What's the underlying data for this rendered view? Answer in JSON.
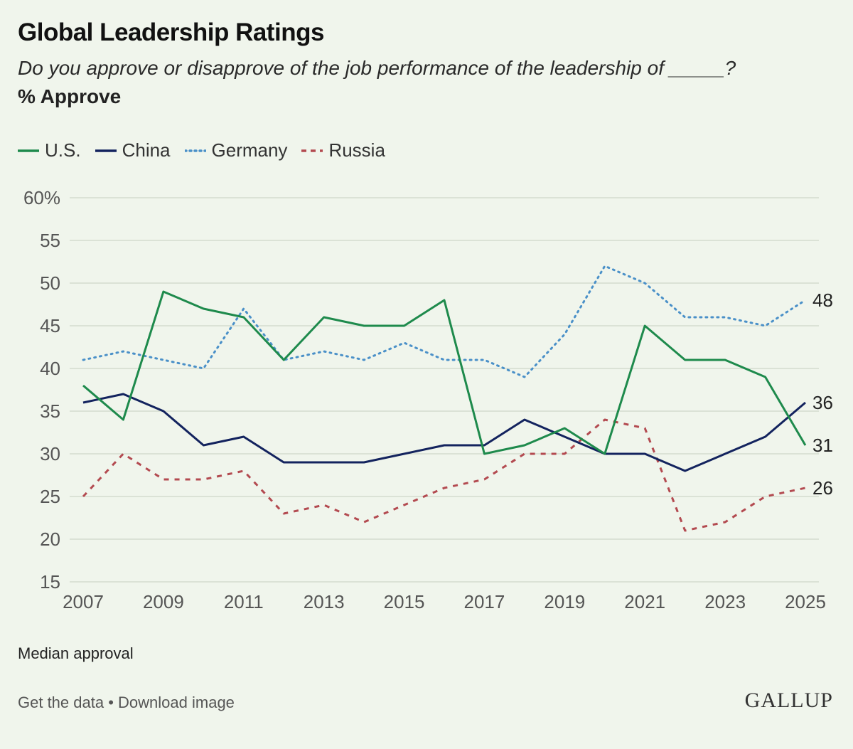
{
  "header": {
    "title": "Global Leadership Ratings",
    "subtitle": "Do you approve or disapprove of the job performance of the leadership of _____?",
    "measure": "% Approve"
  },
  "footer": {
    "note": "Median approval",
    "get_data": "Get the data",
    "separator": "•",
    "download": "Download image",
    "brand": "GALLUP"
  },
  "chart_data": {
    "type": "line",
    "title": "Global Leadership Ratings",
    "ylabel": "% Approve",
    "xlabel": "",
    "ylim": [
      15,
      60
    ],
    "xlim": [
      2007,
      2025
    ],
    "y_ticks": [
      "60%",
      "55",
      "50",
      "45",
      "40",
      "35",
      "30",
      "25",
      "20",
      "15"
    ],
    "y_tick_values": [
      60,
      55,
      50,
      45,
      40,
      35,
      30,
      25,
      20,
      15
    ],
    "x_ticks": [
      "2007",
      "2009",
      "2011",
      "2013",
      "2015",
      "2017",
      "2019",
      "2021",
      "2023",
      "2025"
    ],
    "x_tick_values": [
      2007,
      2009,
      2011,
      2013,
      2015,
      2017,
      2019,
      2021,
      2023,
      2025
    ],
    "grid": true,
    "legend_position": "top-left",
    "x": [
      2007,
      2008,
      2009,
      2010,
      2011,
      2012,
      2013,
      2014,
      2015,
      2016,
      2017,
      2018,
      2019,
      2020,
      2021,
      2022,
      2023,
      2024,
      2025
    ],
    "series": [
      {
        "name": "U.S.",
        "color": "#1e8a4c",
        "style": "solid",
        "values": [
          38,
          34,
          49,
          47,
          46,
          41,
          46,
          45,
          45,
          48,
          30,
          31,
          33,
          30,
          45,
          41,
          41,
          39,
          31
        ],
        "end_label": "31"
      },
      {
        "name": "China",
        "color": "#13235e",
        "style": "solid",
        "values": [
          36,
          37,
          35,
          31,
          32,
          29,
          29,
          29,
          30,
          31,
          31,
          34,
          32,
          30,
          30,
          28,
          30,
          32,
          36
        ],
        "end_label": "36"
      },
      {
        "name": "Germany",
        "color": "#4a90c8",
        "style": "dotted",
        "values": [
          41,
          42,
          41,
          40,
          47,
          41,
          42,
          41,
          43,
          41,
          41,
          39,
          44,
          52,
          50,
          46,
          46,
          45,
          48
        ],
        "end_label": "48"
      },
      {
        "name": "Russia",
        "color": "#b34a50",
        "style": "dashed",
        "values": [
          25,
          30,
          27,
          27,
          28,
          23,
          24,
          22,
          24,
          26,
          27,
          30,
          30,
          34,
          33,
          21,
          22,
          25,
          26
        ],
        "end_label": "26"
      }
    ]
  }
}
